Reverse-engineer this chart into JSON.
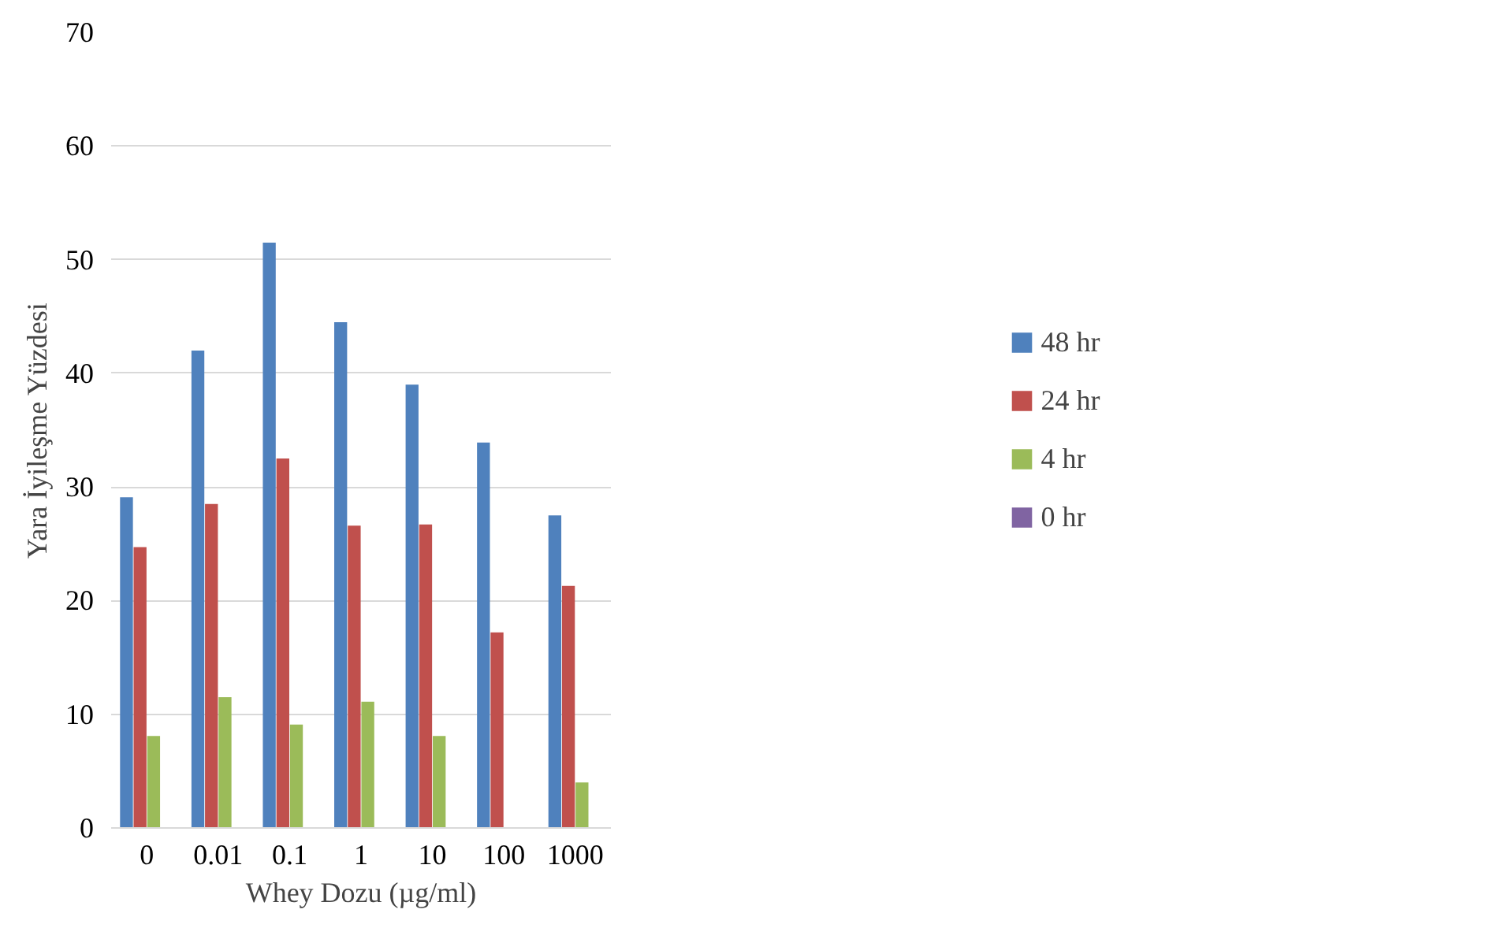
{
  "chart_data": {
    "type": "bar",
    "xlabel": "Whey Dozu (µg/ml)",
    "ylabel": "Yara İyileşme Yüzdesi",
    "categories": [
      "0",
      "0.01",
      "0.1",
      "1",
      "10",
      "100",
      "1000"
    ],
    "series": [
      {
        "name": "48 hr",
        "color": "#4f81bd",
        "values": [
          29.1,
          42.0,
          51.5,
          44.5,
          39.0,
          33.9,
          27.5
        ]
      },
      {
        "name": "24 hr",
        "color": "#c0504d",
        "values": [
          24.7,
          28.5,
          32.5,
          26.6,
          26.7,
          17.2,
          21.3
        ]
      },
      {
        "name": "4 hr",
        "color": "#9bbb59",
        "values": [
          8.1,
          11.5,
          9.1,
          11.1,
          8.1,
          0,
          4.0
        ]
      },
      {
        "name": "0 hr",
        "color": "#8064a2",
        "values": [
          0,
          0,
          0,
          0,
          0,
          0,
          0
        ]
      }
    ],
    "ylim": [
      0,
      70
    ],
    "yticks": [
      0,
      10,
      20,
      30,
      40,
      50,
      60,
      70
    ],
    "grid": "y",
    "legend": "right"
  }
}
